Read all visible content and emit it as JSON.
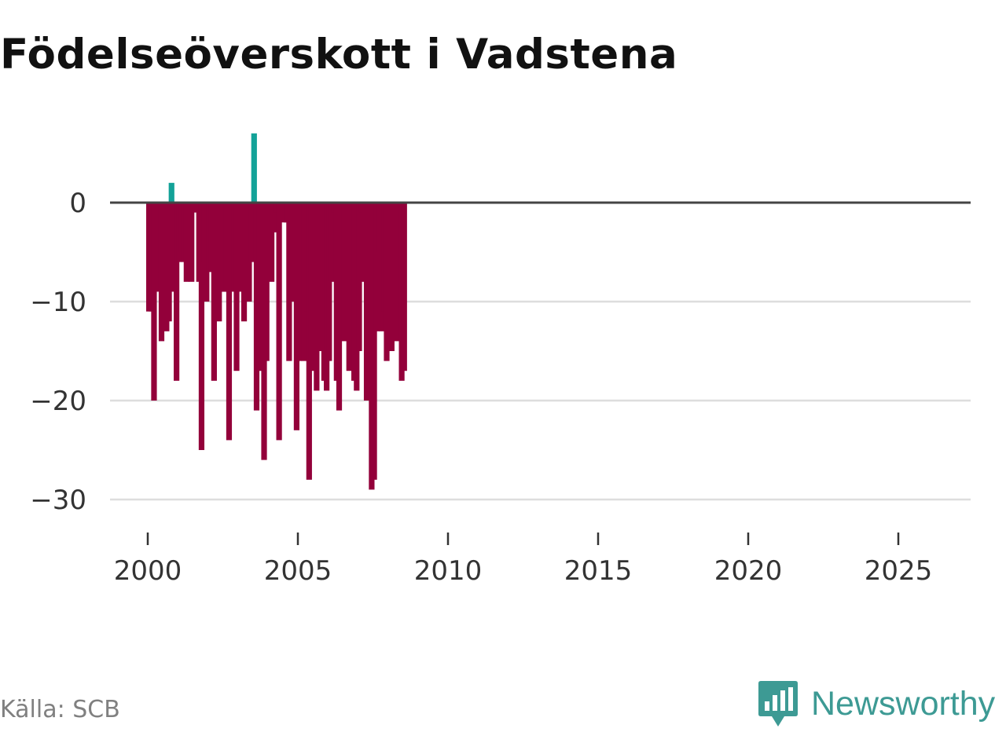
{
  "title": "Födelseöverskott i Vadstena",
  "source": "Källa: SCB",
  "brand": {
    "name": "Newsworthy",
    "icon": "newsworthy-logo-icon",
    "color": "#3d9a94"
  },
  "colors": {
    "positive": "#13a298",
    "negative": "#93003a",
    "grid": "#dddddd",
    "zero_line": "#444444"
  },
  "chart_data": {
    "type": "bar",
    "title": "Födelseöverskott i Vadstena",
    "xlabel": "",
    "ylabel": "",
    "ylim": [
      -33,
      9
    ],
    "xlim": [
      2000,
      2027.5
    ],
    "y_ticks": [
      0,
      -10,
      -20,
      -30
    ],
    "y_tick_labels": [
      "0",
      "−10",
      "−20",
      "−30"
    ],
    "x_ticks": [
      2000,
      2005,
      2010,
      2015,
      2020,
      2025
    ],
    "x_tick_labels": [
      "2000",
      "2005",
      "2010",
      "2015",
      "2020",
      "2025"
    ],
    "grid": true,
    "series": [
      {
        "name": "Födelseöverskott",
        "start": "2000-01",
        "frequency": "monthly",
        "values": [
          -11,
          -11,
          -20,
          -9,
          -7,
          -14,
          -5,
          -13,
          -12,
          2,
          -9,
          -18,
          -6,
          -5,
          -6,
          -8,
          -4,
          -8,
          0,
          -1,
          -8,
          -25,
          -6,
          -10,
          -7,
          -7,
          -18,
          -8,
          -12,
          -9,
          -9,
          -9,
          -24,
          -6,
          -9,
          -17,
          -9,
          -8,
          -12,
          -4,
          -10,
          -6,
          7,
          -21,
          -17,
          -9,
          -26,
          -16,
          -5,
          -8,
          -3,
          -1,
          -24,
          0,
          -2,
          -2,
          -16,
          -10,
          -3,
          -23,
          -16,
          -8,
          -16,
          -11,
          -28,
          -17,
          -16,
          -19,
          0,
          -15,
          -18,
          -19,
          -16,
          -8,
          -1,
          -18,
          -21,
          -3,
          -14,
          -9,
          -17,
          0,
          -18,
          -19,
          -15,
          -1,
          -8,
          -20,
          -10,
          -29,
          -28,
          -13,
          -5,
          -13,
          -11,
          -16,
          -12,
          -15,
          -13,
          -14,
          -12,
          -18,
          -17
        ]
      }
    ]
  }
}
